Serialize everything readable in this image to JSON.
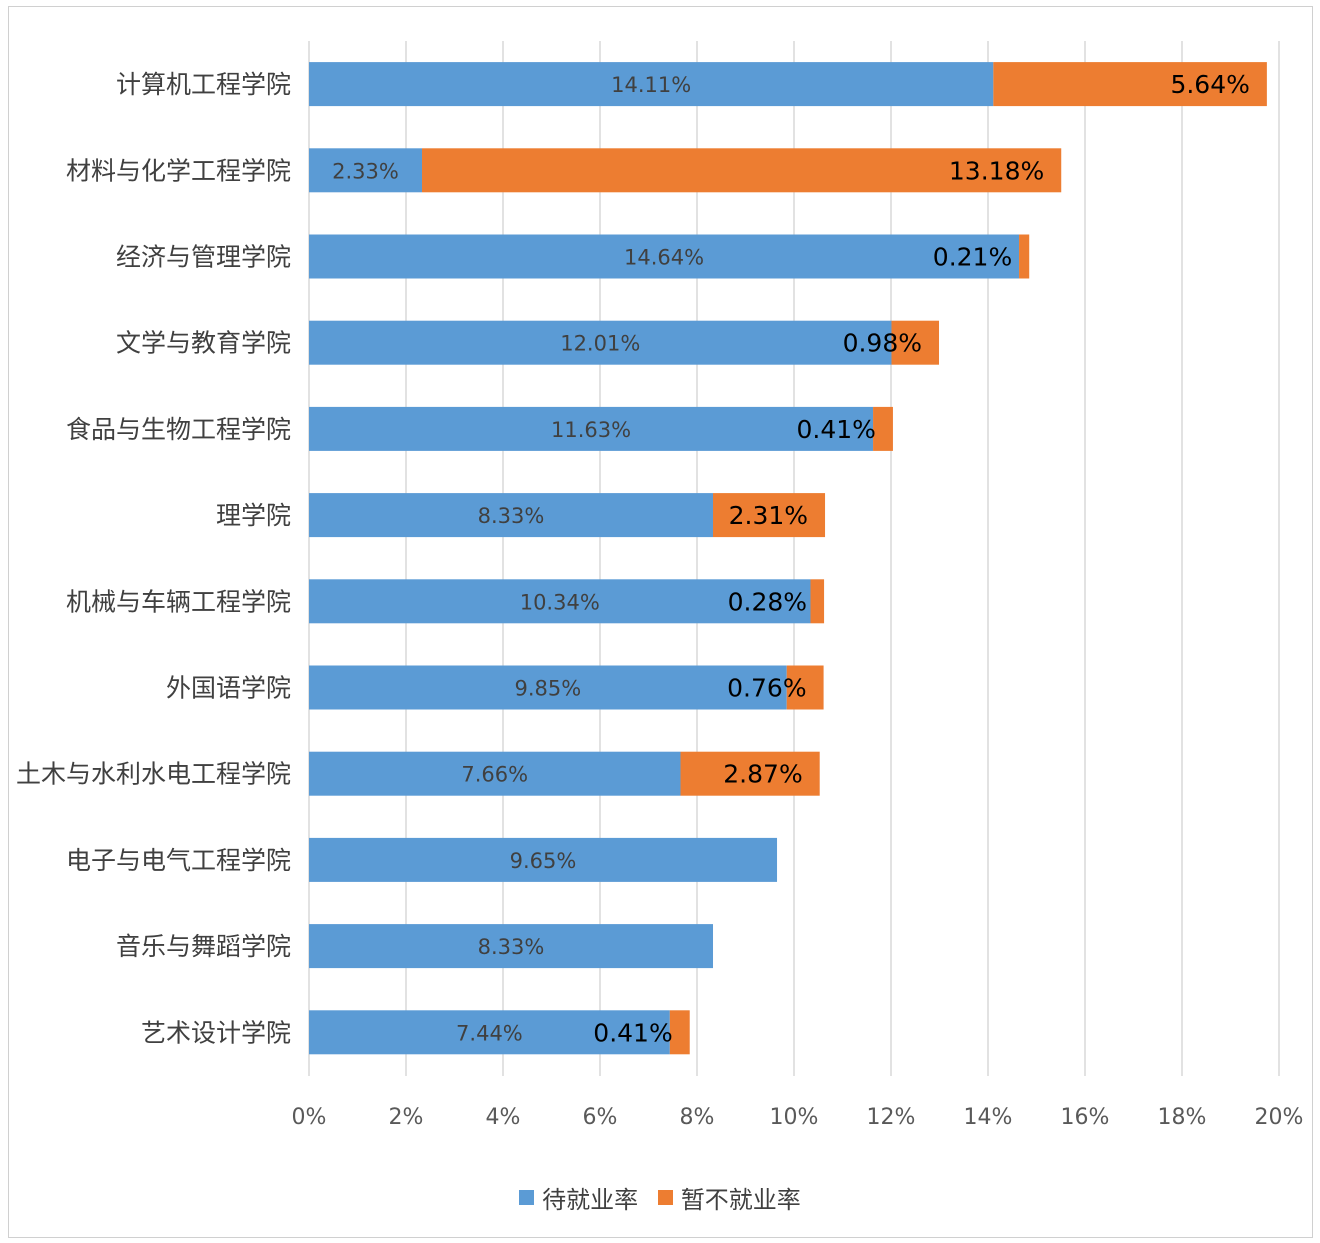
{
  "chart_data": {
    "type": "bar",
    "orientation": "horizontal",
    "stacked": true,
    "categories": [
      "计算机工程学院",
      "材料与化学工程学院",
      "经济与管理学院",
      "文学与教育学院",
      "食品与生物工程学院",
      "理学院",
      "机械与车辆工程学院",
      "外国语学院",
      "土木与水利水电工程学院",
      "电子与电气工程学院",
      "音乐与舞蹈学院",
      "艺术设计学院"
    ],
    "series": [
      {
        "name": "待就业率",
        "color": "#5b9bd5",
        "values": [
          14.11,
          2.33,
          14.64,
          12.01,
          11.63,
          8.33,
          10.34,
          9.85,
          7.66,
          9.65,
          8.33,
          7.44
        ],
        "labels": [
          "14.11%",
          "2.33%",
          "14.64%",
          "12.01%",
          "11.63%",
          "8.33%",
          "10.34%",
          "9.85%",
          "7.66%",
          "9.65%",
          "8.33%",
          "7.44%"
        ]
      },
      {
        "name": "暂不就业率",
        "color": "#ed7d31",
        "values": [
          5.64,
          13.18,
          0.21,
          0.98,
          0.41,
          2.31,
          0.28,
          0.76,
          2.87,
          null,
          null,
          0.41
        ],
        "labels": [
          "5.64%",
          "13.18%",
          "0.21%",
          "0.98%",
          "0.41%",
          "2.31%",
          "0.28%",
          "0.76%",
          "2.87%",
          "",
          "",
          "0.41%"
        ]
      }
    ],
    "xlim": [
      0,
      20
    ],
    "xticks": [
      "0%",
      "2%",
      "4%",
      "6%",
      "8%",
      "10%",
      "12%",
      "14%",
      "16%",
      "18%",
      "20%"
    ],
    "grid": true,
    "legend_position": "bottom",
    "title": "",
    "xlabel": "",
    "ylabel": ""
  }
}
